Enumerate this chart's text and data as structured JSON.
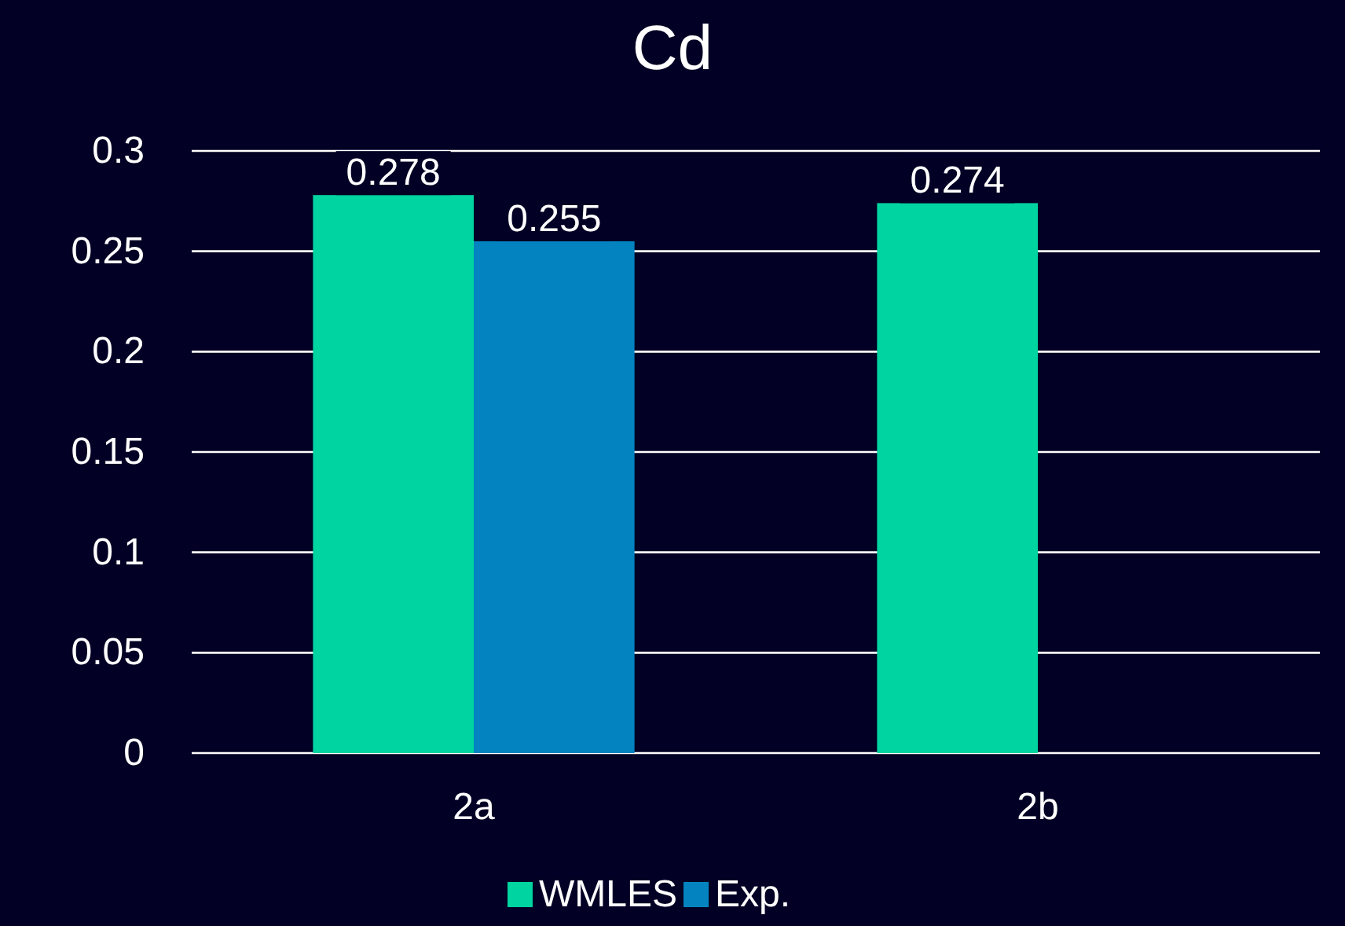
{
  "chart_data": {
    "type": "bar",
    "title": "Cd",
    "categories": [
      "2a",
      "2b"
    ],
    "series": [
      {
        "name": "WMLES",
        "color": "#00d4a0",
        "values": [
          0.278,
          0.274
        ]
      },
      {
        "name": "Exp.",
        "color": "#0384c0",
        "values": [
          0.255,
          null
        ]
      }
    ],
    "ylim": [
      0,
      0.3
    ],
    "yticks": [
      0,
      0.05,
      0.1,
      0.15,
      0.2,
      0.25,
      0.3
    ],
    "grid": "y",
    "legend": "bottom",
    "data_labels": true
  }
}
